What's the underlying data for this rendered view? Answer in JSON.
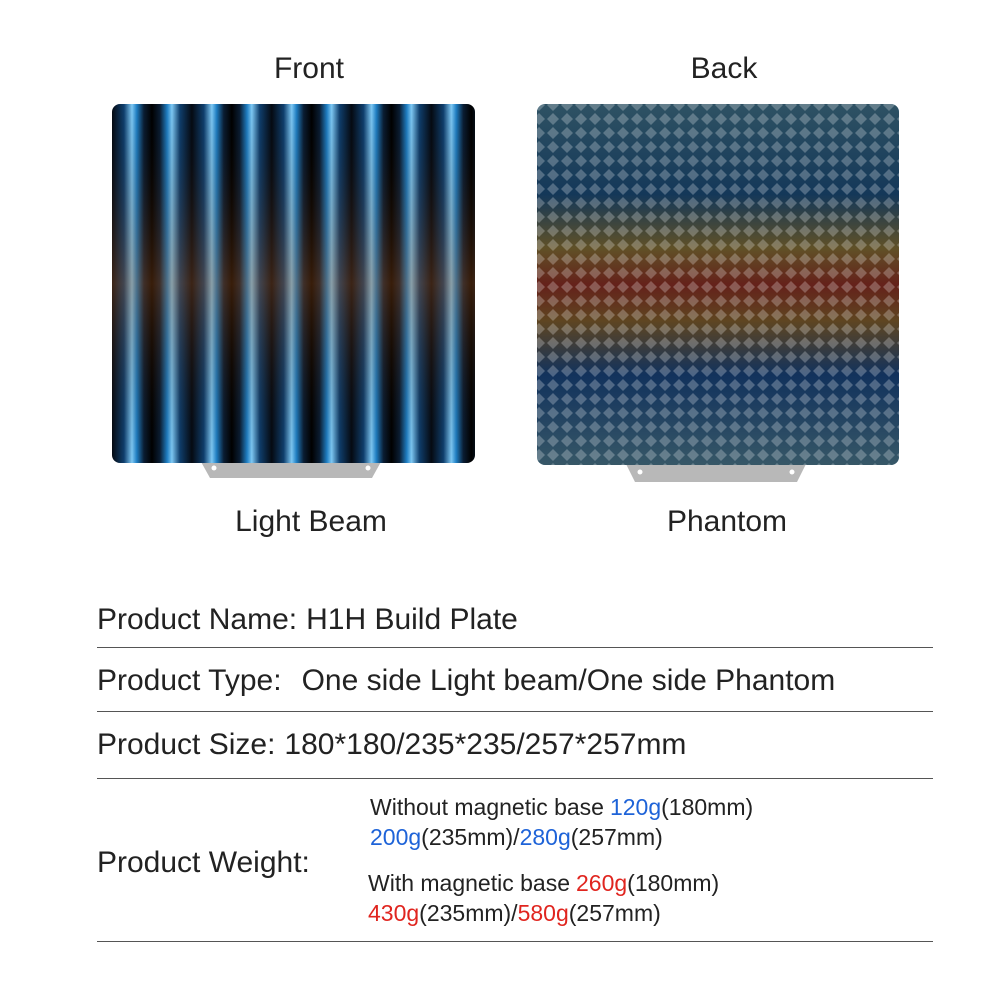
{
  "panels": [
    {
      "heading": "Front",
      "caption": "Light Beam"
    },
    {
      "heading": "Back",
      "caption": "Phantom"
    }
  ],
  "specs": [
    {
      "label": "Product Name:",
      "value": "H1H Build Plate"
    },
    {
      "label": "Product Type:",
      "value": "One side Light beam/One side Phantom"
    },
    {
      "label": "Product Size:",
      "value": "180*180/235*235/257*257mm"
    }
  ],
  "weight": {
    "label": "Product Weight:",
    "lines": [
      [
        {
          "text": "Without magnetic base"
        },
        {
          "text": "120g",
          "color": "#1e63d8"
        },
        {
          "text": "(180mm)"
        }
      ],
      [
        {
          "text": "200g",
          "color": "#1e63d8"
        },
        {
          "text": "(235mm)/"
        },
        {
          "text": "280g",
          "color": "#1e63d8"
        },
        {
          "text": "(257mm)"
        }
      ],
      [
        {
          "text": "With magnetic base"
        },
        {
          "text": "260g",
          "color": "#e0251f"
        },
        {
          "text": "(180mm)"
        }
      ],
      [
        {
          "text": "430g",
          "color": "#e0251f"
        },
        {
          "text": "(235mm)/"
        },
        {
          "text": "580g",
          "color": "#e0251f"
        },
        {
          "text": "(257mm)"
        }
      ]
    ]
  }
}
